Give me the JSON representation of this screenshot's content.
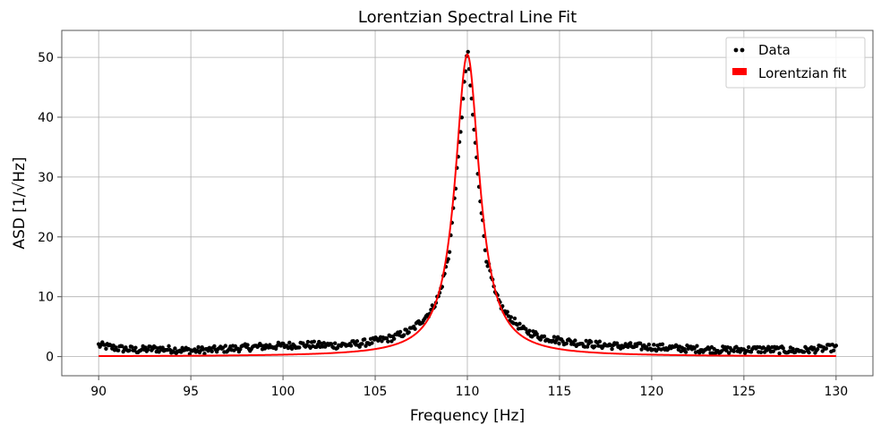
{
  "colors": {
    "data_points": "#000000",
    "fit_line": "#ff0000",
    "grid": "#b0b0b0",
    "axes": "#555555"
  },
  "chart_data": {
    "type": "scatter",
    "title": "Lorentzian Spectral Line Fit",
    "xlabel": "Frequency [Hz]",
    "ylabel": "ASD [1/√Hz]",
    "xlim": [
      88,
      132
    ],
    "ylim": [
      -3.2,
      54.5
    ],
    "xticks": [
      90,
      95,
      100,
      105,
      110,
      115,
      120,
      125,
      130
    ],
    "yticks": [
      0,
      10,
      20,
      30,
      40,
      50
    ],
    "grid": true,
    "legend_position": "top-right",
    "series": [
      {
        "name": "Data",
        "kind": "scatter",
        "color": "#000000",
        "sampling": {
          "x_start": 90,
          "x_end": 130,
          "count": 600
        },
        "points": [
          [
            90.0,
            1.9
          ],
          [
            91.0,
            1.4
          ],
          [
            92.0,
            1.1
          ],
          [
            93.0,
            1.3
          ],
          [
            94.0,
            1.2
          ],
          [
            95.0,
            1.0
          ],
          [
            96.0,
            1.1
          ],
          [
            97.0,
            1.3
          ],
          [
            98.0,
            1.5
          ],
          [
            99.0,
            1.7
          ],
          [
            100.0,
            1.8
          ],
          [
            101.0,
            2.0
          ],
          [
            102.0,
            1.9
          ],
          [
            103.0,
            1.9
          ],
          [
            104.0,
            2.1
          ],
          [
            105.0,
            2.6
          ],
          [
            106.0,
            3.2
          ],
          [
            107.0,
            4.5
          ],
          [
            108.0,
            7.5
          ],
          [
            108.5,
            10.5
          ],
          [
            109.0,
            17.0
          ],
          [
            109.5,
            33.0
          ],
          [
            110.0,
            51.5
          ],
          [
            110.5,
            33.0
          ],
          [
            111.0,
            17.0
          ],
          [
            111.5,
            10.5
          ],
          [
            112.0,
            7.5
          ],
          [
            113.0,
            4.5
          ],
          [
            114.0,
            3.3
          ],
          [
            115.0,
            2.7
          ],
          [
            116.0,
            2.3
          ],
          [
            117.0,
            2.0
          ],
          [
            118.0,
            1.8
          ],
          [
            119.0,
            1.7
          ],
          [
            120.0,
            1.6
          ],
          [
            122.0,
            1.3
          ],
          [
            124.0,
            1.1
          ],
          [
            126.0,
            1.2
          ],
          [
            128.0,
            1.0
          ],
          [
            130.0,
            1.5
          ]
        ]
      },
      {
        "name": "Lorentzian fit",
        "kind": "line",
        "color": "#ff0000",
        "model": "lorentzian",
        "params": {
          "amplitude": 50.5,
          "center": 110.0,
          "gamma": 0.8
        },
        "x_range": [
          90,
          130
        ]
      }
    ]
  }
}
